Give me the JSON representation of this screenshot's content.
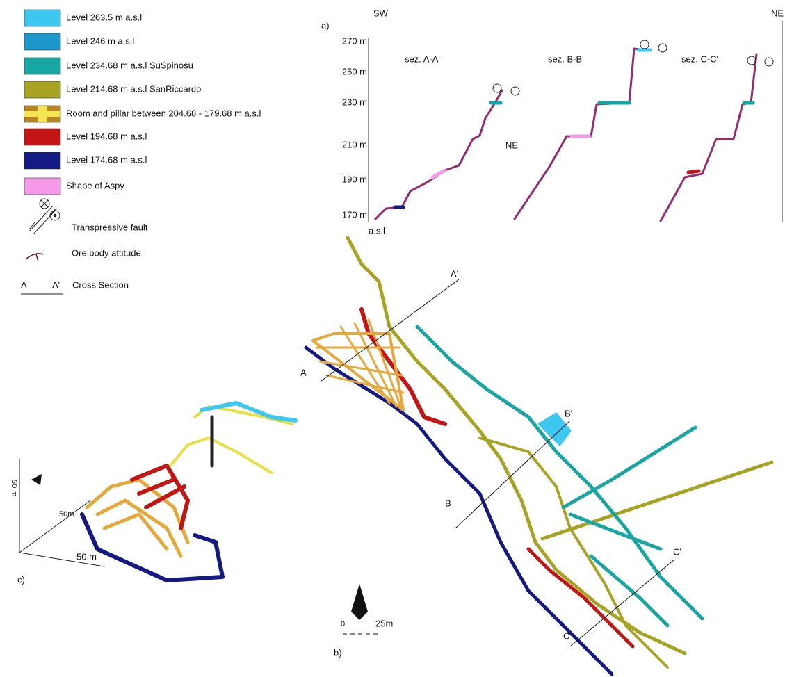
{
  "legend": {
    "items": [
      "Level 263.5 m a.s.l",
      "Level  246 m a.s.l",
      "Level 234.68  m  a.s.l SuSpinosu",
      "Level 214.68 m a.s.l SanRiccardo",
      "Room and pillar between 204.68 - 179.68 m a.s.l",
      "Level 194.68 m a.s.l",
      "Level 174.68 m a.s.l",
      "Shape of Aspy"
    ],
    "fault": "Transpressive fault",
    "ore": "Ore body attitude",
    "section_a": "A",
    "section_a2": "A'",
    "section": "Cross Section"
  },
  "panel_a": {
    "label": "a)",
    "left": "SW",
    "right": "NE",
    "middle": "NE",
    "elevations": [
      "270 m",
      "250 m",
      "230 m",
      "210 m",
      "190 m",
      "170 m"
    ],
    "unit": "a.s.l",
    "sections": [
      "sez. A-A'",
      "sez. B-B'",
      "sez. C-C'"
    ]
  },
  "panel_b": {
    "label": "b)",
    "a2": "A'",
    "a": "A",
    "b2": "B'",
    "b": "B",
    "c2": "C'",
    "c": "C",
    "scale_start": "0",
    "scale_end": "25m"
  },
  "panel_c": {
    "label": "c)",
    "z": "50 m",
    "y": "50m",
    "x": "50 m"
  }
}
